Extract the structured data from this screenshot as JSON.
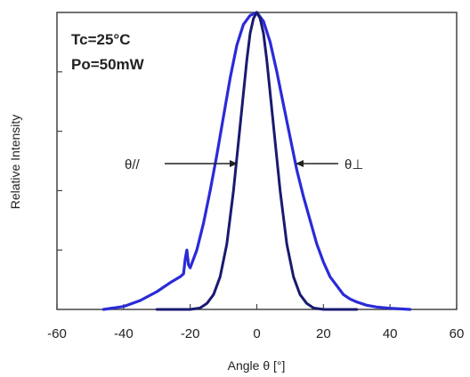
{
  "chart_data": {
    "type": "line",
    "title": "",
    "xlabel": "Angle  θ [°]",
    "ylabel": "Relative Intensity",
    "xlim": [
      -60,
      60
    ],
    "ylim": [
      0,
      1
    ],
    "x_ticks": [
      -60,
      -40,
      -20,
      0,
      20,
      40,
      60
    ],
    "x_tick_labels": [
      "-60",
      "-40",
      "-20",
      "0",
      "20",
      "40",
      "60"
    ],
    "y_tick_values": [
      0.2,
      0.4,
      0.6,
      0.8
    ],
    "grid": false,
    "conditions": [
      "Tc=25°C",
      "Po=50mW"
    ],
    "annotations": [
      {
        "label": "θ//",
        "points_to": "narrow"
      },
      {
        "label": "θ⊥",
        "points_to": "wide"
      }
    ],
    "series": [
      {
        "color": "#2a2ad8",
        "x": [
          -46,
          -40,
          -35,
          -30,
          -26,
          -23,
          -22,
          -21.5,
          -21,
          -20.5,
          -20,
          -19,
          -18,
          -16,
          -14,
          -12,
          -10,
          -8,
          -6,
          -4,
          -2,
          0,
          2,
          4,
          6,
          8,
          10,
          12,
          14,
          16,
          18,
          20,
          22,
          24,
          26,
          28,
          30,
          33,
          36,
          40,
          46
        ],
        "y": [
          0.0,
          0.01,
          0.03,
          0.06,
          0.09,
          0.11,
          0.12,
          0.17,
          0.2,
          0.15,
          0.14,
          0.17,
          0.2,
          0.29,
          0.4,
          0.52,
          0.65,
          0.78,
          0.89,
          0.96,
          0.99,
          1.0,
          0.97,
          0.9,
          0.8,
          0.69,
          0.58,
          0.47,
          0.38,
          0.3,
          0.22,
          0.16,
          0.11,
          0.08,
          0.05,
          0.035,
          0.025,
          0.014,
          0.008,
          0.004,
          0.0
        ]
      },
      {
        "color": "#1a1a70",
        "x": [
          -30,
          -20,
          -17,
          -15,
          -13,
          -11,
          -9,
          -7,
          -5,
          -3,
          -2,
          -1,
          0,
          1,
          2,
          3,
          5,
          7,
          9,
          11,
          13,
          15,
          17,
          20,
          30
        ],
        "y": [
          0.0,
          0.0,
          0.005,
          0.02,
          0.05,
          0.11,
          0.22,
          0.4,
          0.62,
          0.84,
          0.93,
          0.98,
          1.0,
          0.98,
          0.93,
          0.84,
          0.62,
          0.4,
          0.22,
          0.11,
          0.05,
          0.02,
          0.005,
          0.0,
          0.0
        ]
      }
    ]
  }
}
